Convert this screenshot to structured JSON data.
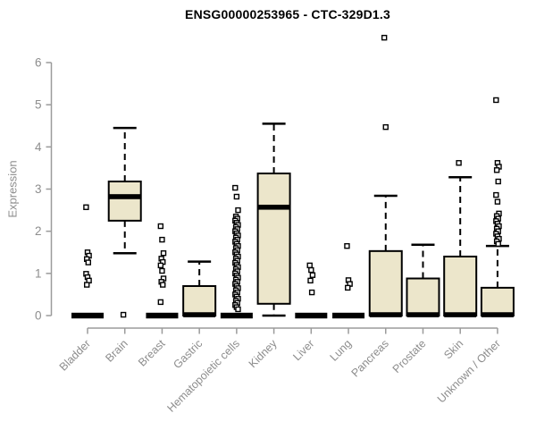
{
  "header": {
    "title": "ENSG00000253965 - CTC-329D1.3"
  },
  "chart_data": {
    "type": "boxplot",
    "title": "ENSG00000253965 - CTC-329D1.3",
    "xlabel": "",
    "ylabel": "Expression",
    "ylim": [
      0,
      6.6
    ],
    "yticks": [
      0,
      1,
      2,
      3,
      4,
      5,
      6
    ],
    "grid": false,
    "legend": "none",
    "categories": [
      "Bladder",
      "Brain",
      "Breast",
      "Gastric",
      "Hematopoietic cells",
      "Kidney",
      "Liver",
      "Lung",
      "Pancreas",
      "Prostate",
      "Skin",
      "Unknown / Other"
    ],
    "series": [
      {
        "name": "Bladder",
        "whisker_low": 0,
        "q1": 0,
        "median": 0,
        "q3": 0,
        "whisker_high": 0,
        "outliers": [
          2.57,
          1.5,
          1.42,
          1.34,
          1.26,
          0.99,
          0.91,
          0.83,
          0.73
        ]
      },
      {
        "name": "Brain",
        "whisker_low": 1.48,
        "q1": 2.25,
        "median": 2.82,
        "q3": 3.18,
        "whisker_high": 4.45,
        "outliers": [
          0.02
        ]
      },
      {
        "name": "Breast",
        "whisker_low": 0,
        "q1": 0,
        "median": 0,
        "q3": 0,
        "whisker_high": 0,
        "outliers": [
          2.12,
          1.8,
          1.48,
          1.35,
          1.27,
          1.19,
          1.06,
          0.88,
          0.8,
          0.73,
          0.32
        ]
      },
      {
        "name": "Gastric",
        "whisker_low": 0,
        "q1": 0,
        "median": 0.02,
        "q3": 0.7,
        "whisker_high": 1.28,
        "outliers": []
      },
      {
        "name": "Hematopoietic cells",
        "whisker_low": 0,
        "q1": 0,
        "median": 0,
        "q3": 0,
        "whisker_high": 0,
        "outliers": [
          3.03,
          2.82,
          2.5,
          2.35,
          2.3,
          2.25,
          2.2,
          2.15,
          2.1,
          2.05,
          2.0,
          1.95,
          1.9,
          1.85,
          1.8,
          1.75,
          1.7,
          1.65,
          1.6,
          1.55,
          1.5,
          1.45,
          1.4,
          1.35,
          1.3,
          1.25,
          1.2,
          1.15,
          1.1,
          1.05,
          1.0,
          0.95,
          0.9,
          0.85,
          0.8,
          0.75,
          0.7,
          0.65,
          0.6,
          0.55,
          0.5,
          0.45,
          0.4,
          0.35,
          0.3,
          0.25,
          0.2,
          0.15
        ]
      },
      {
        "name": "Kidney",
        "whisker_low": 0,
        "q1": 0.28,
        "median": 2.57,
        "q3": 3.37,
        "whisker_high": 4.55,
        "outliers": []
      },
      {
        "name": "Liver",
        "whisker_low": 0,
        "q1": 0,
        "median": 0,
        "q3": 0,
        "whisker_high": 0,
        "outliers": [
          1.19,
          1.08,
          0.96,
          0.83,
          0.55
        ]
      },
      {
        "name": "Lung",
        "whisker_low": 0,
        "q1": 0,
        "median": 0,
        "q3": 0,
        "whisker_high": 0,
        "outliers": [
          1.65,
          0.84,
          0.75,
          0.66
        ]
      },
      {
        "name": "Pancreas",
        "whisker_low": 0,
        "q1": 0,
        "median": 0.02,
        "q3": 1.53,
        "whisker_high": 2.84,
        "outliers": [
          6.59,
          4.47
        ]
      },
      {
        "name": "Prostate",
        "whisker_low": 0,
        "q1": 0,
        "median": 0.02,
        "q3": 0.88,
        "whisker_high": 1.68,
        "outliers": []
      },
      {
        "name": "Skin",
        "whisker_low": 0,
        "q1": 0,
        "median": 0.02,
        "q3": 1.4,
        "whisker_high": 3.28,
        "outliers": [
          3.62
        ]
      },
      {
        "name": "Unknown / Other",
        "whisker_low": 0,
        "q1": 0,
        "median": 0.02,
        "q3": 0.66,
        "whisker_high": 1.65,
        "outliers": [
          5.11,
          3.62,
          3.53,
          3.45,
          3.18,
          2.86,
          2.7,
          2.42,
          2.36,
          2.3,
          2.24,
          2.18,
          2.12,
          2.06,
          2.0,
          1.94,
          1.88,
          1.82,
          1.76,
          1.7
        ]
      }
    ],
    "colors": {
      "box_fill": "#ECE6CB",
      "box_border": "#000000",
      "median": "#000000",
      "whisker": "#000000",
      "outlier_border": "#000000",
      "outlier_fill": "#ffffff",
      "axis_line": "#9b9b9b",
      "tick_text": "#8d8d8d",
      "title_color": "#000000",
      "background": "#ffffff"
    }
  }
}
